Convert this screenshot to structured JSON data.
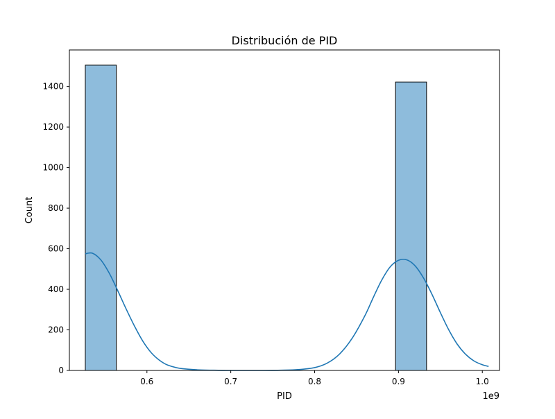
{
  "chart_data": {
    "type": "histogram",
    "title": "Distribución de PID",
    "xlabel": "PID",
    "ylabel": "Count",
    "x_offset_label": "1e9",
    "xlim": [
      0.5075,
      1.0205
    ],
    "ylim": [
      0,
      1580
    ],
    "x_ticks": [
      {
        "value": 0.6,
        "label": "0.6"
      },
      {
        "value": 0.7,
        "label": "0.7"
      },
      {
        "value": 0.8,
        "label": "0.8"
      },
      {
        "value": 0.9,
        "label": "0.9"
      },
      {
        "value": 1.0,
        "label": "1.0"
      }
    ],
    "y_ticks": [
      {
        "value": 0,
        "label": "0"
      },
      {
        "value": 200,
        "label": "200"
      },
      {
        "value": 400,
        "label": "400"
      },
      {
        "value": 600,
        "label": "600"
      },
      {
        "value": 800,
        "label": "800"
      },
      {
        "value": 1000,
        "label": "1000"
      },
      {
        "value": 1200,
        "label": "1200"
      },
      {
        "value": 1400,
        "label": "1400"
      }
    ],
    "bins": [
      {
        "x0": 0.5265,
        "x1": 0.5635,
        "count": 1505
      },
      {
        "x0": 0.8965,
        "x1": 0.9335,
        "count": 1422
      }
    ],
    "kde": {
      "x": [
        0.5265,
        0.535,
        0.545,
        0.555,
        0.565,
        0.575,
        0.585,
        0.595,
        0.605,
        0.615,
        0.625,
        0.64,
        0.66,
        0.68,
        0.7,
        0.72,
        0.74,
        0.76,
        0.78,
        0.8,
        0.815,
        0.83,
        0.845,
        0.86,
        0.87,
        0.88,
        0.89,
        0.9,
        0.91,
        0.92,
        0.93,
        0.94,
        0.95,
        0.96,
        0.97,
        0.98,
        0.99,
        1.0,
        1.0075
      ],
      "y": [
        575,
        578,
        545,
        480,
        395,
        305,
        220,
        145,
        88,
        50,
        26,
        10,
        3,
        1,
        0,
        0,
        0,
        1,
        4,
        14,
        36,
        82,
        160,
        270,
        360,
        445,
        510,
        543,
        545,
        515,
        455,
        375,
        285,
        200,
        130,
        80,
        47,
        28,
        20
      ]
    },
    "bar_fill": "#8ebcdc",
    "bar_edge": "#000000",
    "kde_color": "#1f77b4",
    "grid": false
  }
}
